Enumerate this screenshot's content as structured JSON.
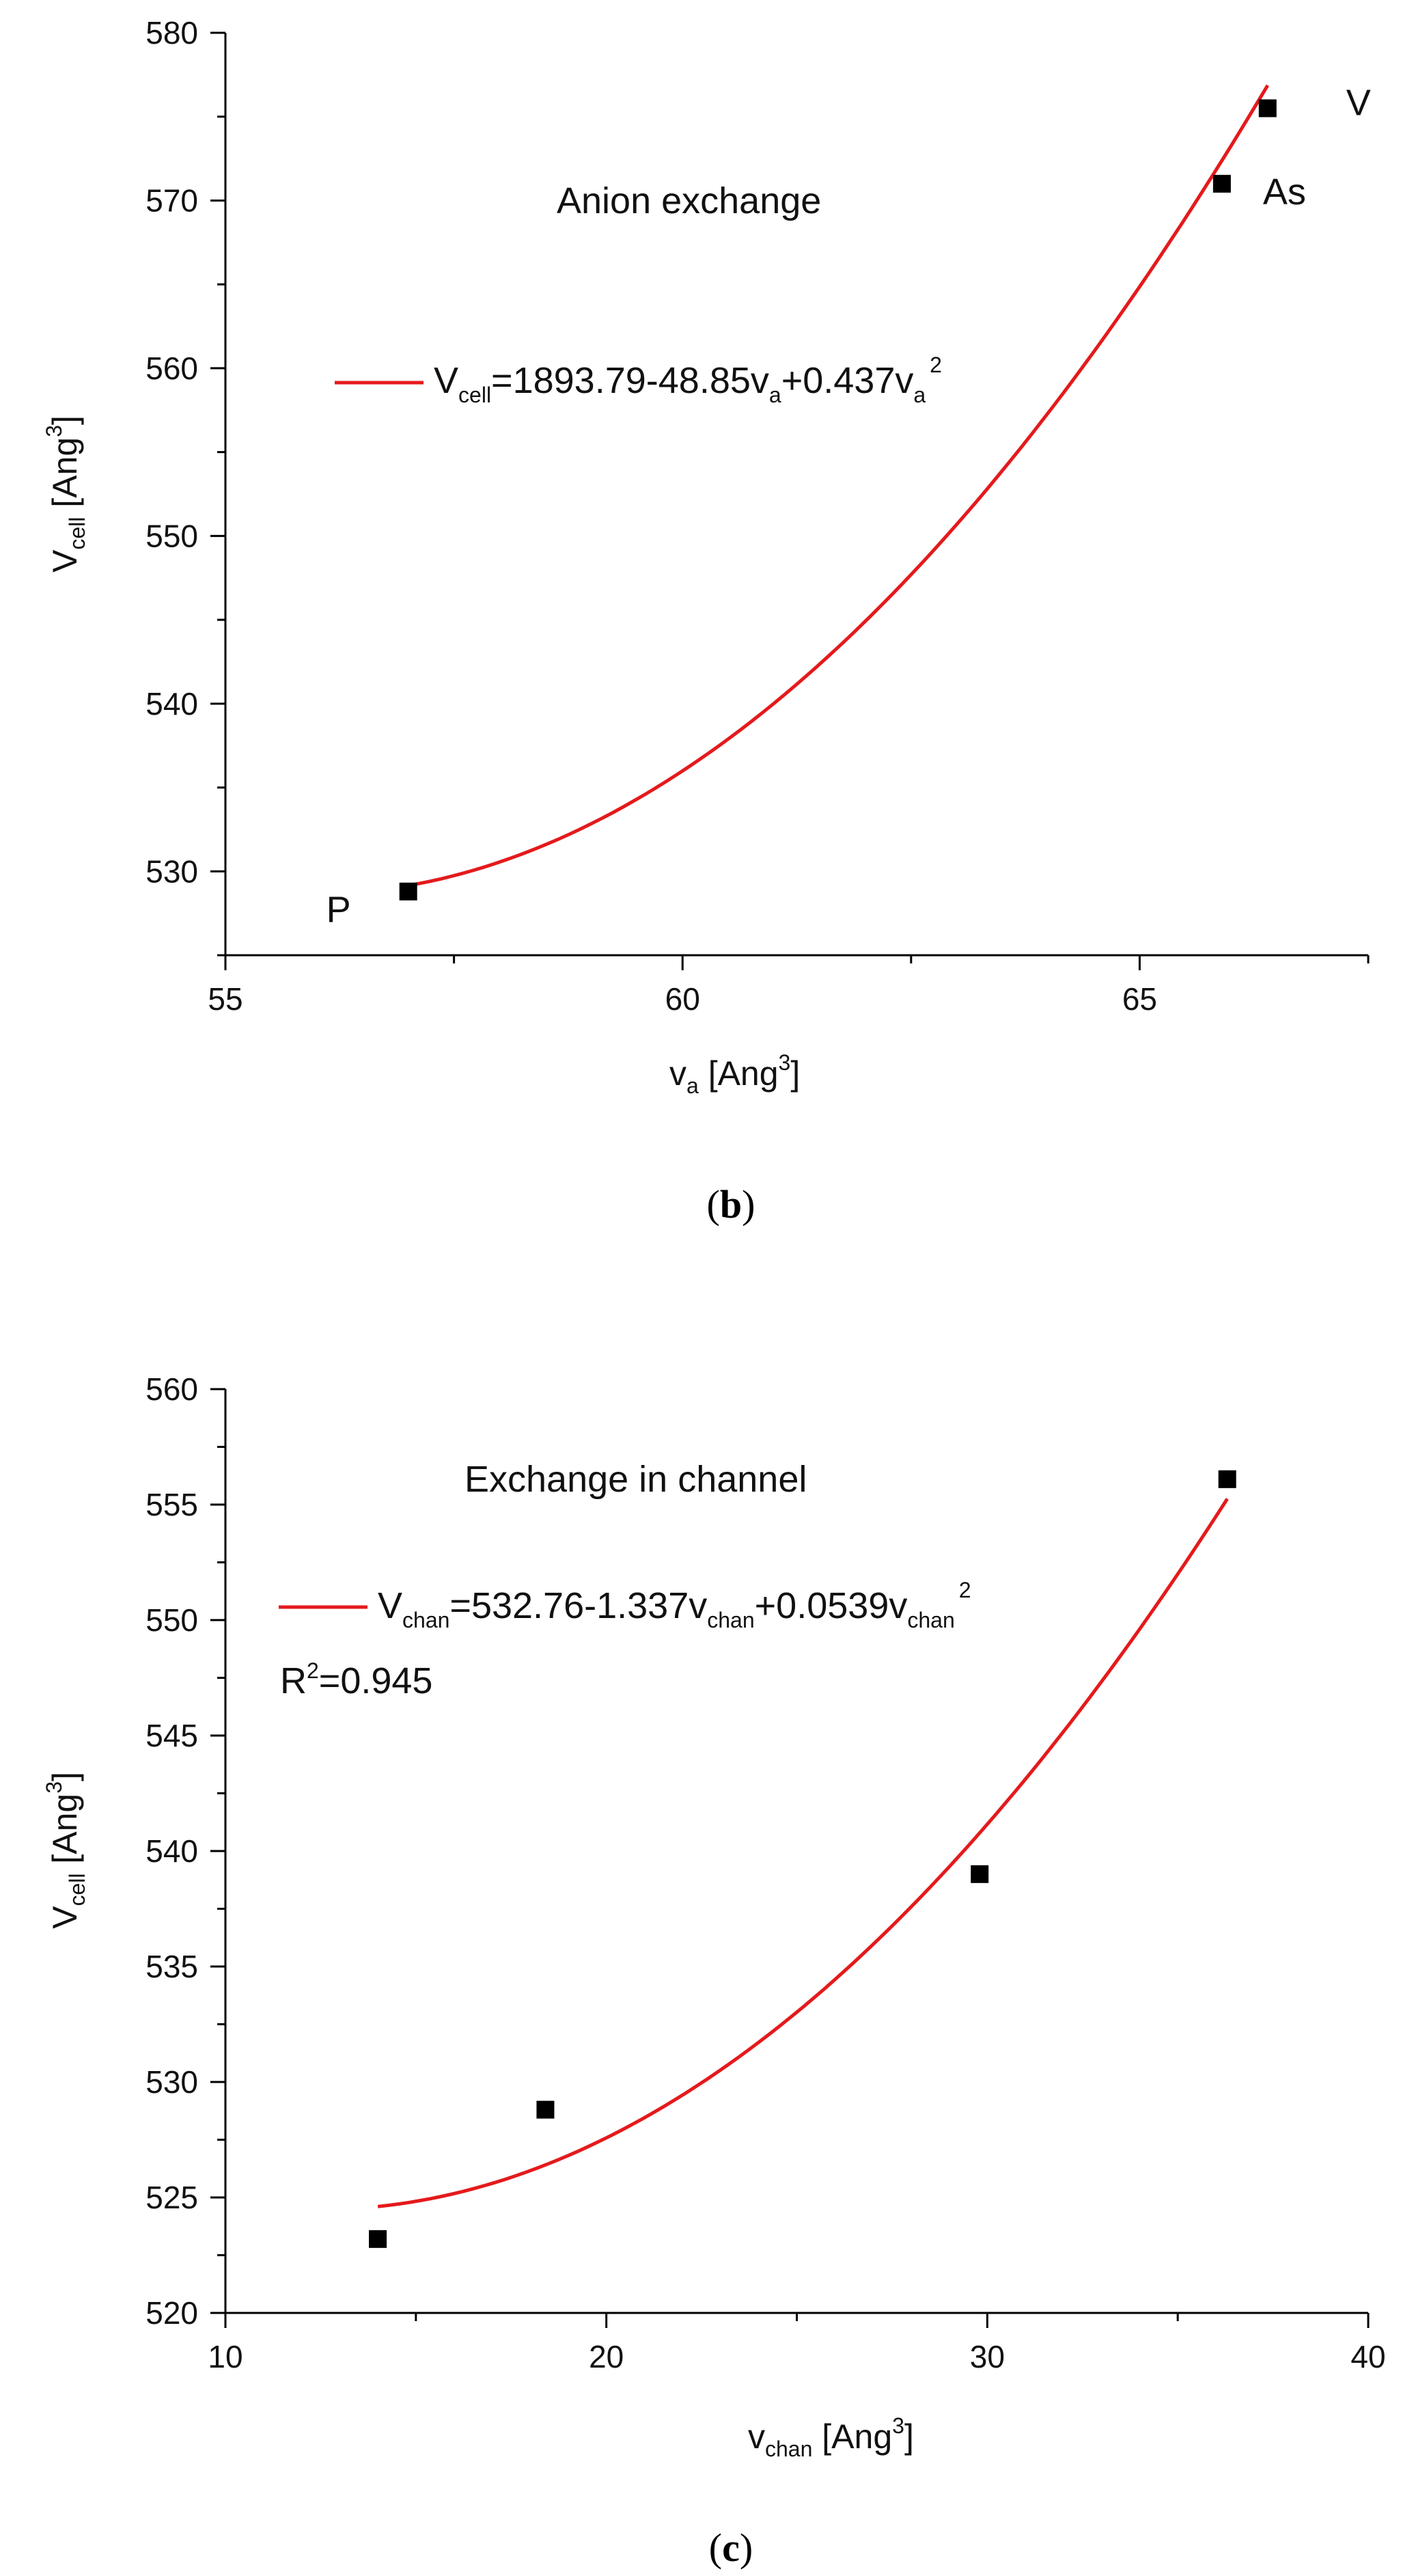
{
  "chart_data": [
    {
      "type": "scatter",
      "caption": "(b)",
      "xlim": [
        55,
        67.5
      ],
      "ylim": [
        525,
        580
      ],
      "x_ticks": [
        55,
        60,
        65
      ],
      "y_ticks": [
        530,
        540,
        550,
        560,
        570,
        580
      ],
      "xlabel": {
        "main": "v",
        "sub": "a",
        "rest": " [Ang",
        "sup": "3",
        "end": "]"
      },
      "ylabel": {
        "main": "V",
        "sub": "cell",
        "rest": " [Ang",
        "sup": "3",
        "end": "]"
      },
      "annotation": "Anion exchange",
      "legend_label": {
        "p1": "V",
        "p1_sub": "cell",
        "p2": "=1893.79-48.85v",
        "p2_sub": "a",
        "p3": "+0.437v",
        "p3_sub": "a",
        "p3_sup": "2"
      },
      "fit": {
        "a": 1893.79,
        "b": -48.85,
        "c": 0.437,
        "x_range": [
          57.0,
          66.4
        ]
      },
      "points": [
        {
          "label": "P",
          "x": 57.0,
          "y": 528.8
        },
        {
          "label": "As",
          "x": 65.9,
          "y": 571.0
        },
        {
          "label": "V",
          "x": 66.4,
          "y": 575.5
        }
      ]
    },
    {
      "type": "scatter",
      "caption": "(c)",
      "xlim": [
        10,
        40
      ],
      "ylim": [
        520,
        560
      ],
      "x_ticks": [
        10,
        20,
        30,
        40
      ],
      "y_ticks": [
        520,
        525,
        530,
        535,
        540,
        545,
        550,
        555,
        560
      ],
      "xlabel": {
        "main": "v",
        "sub": "chan",
        "rest": " [Ang",
        "sup": "3",
        "end": "]"
      },
      "ylabel": {
        "main": "V",
        "sub": "cell",
        "rest": " [Ang",
        "sup": "3",
        "end": "]"
      },
      "annotation": "Exchange in channel",
      "legend_label": {
        "p1": "V",
        "p1_sub": "chan",
        "p2": "=532.76-1.337v",
        "p2_sub": "chan",
        "p3": "+0.0539v",
        "p3_sub": "chan",
        "p3_sup": "2"
      },
      "r2_label": {
        "main": "R",
        "sup": "2",
        "rest": "=0.945"
      },
      "fit": {
        "a": 532.76,
        "b": -1.337,
        "c": 0.0539,
        "x_range": [
          14.0,
          36.3
        ]
      },
      "points": [
        {
          "x": 14.0,
          "y": 523.2
        },
        {
          "x": 18.4,
          "y": 528.8
        },
        {
          "x": 29.8,
          "y": 539.0
        },
        {
          "x": 36.3,
          "y": 556.1
        }
      ]
    }
  ]
}
